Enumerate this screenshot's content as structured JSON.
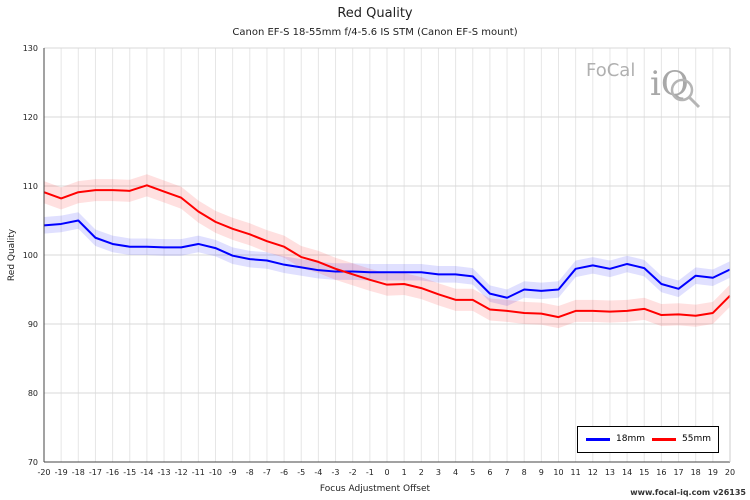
{
  "chart_data": {
    "type": "line",
    "title": "Red Quality",
    "subtitle": "Canon EF-S 18-55mm f/4-5.6 IS STM (Canon EF-S mount)",
    "xlabel": "Focus Adjustment Offset",
    "ylabel": "Red Quality",
    "xlim": [
      -20,
      20
    ],
    "ylim": [
      70,
      130
    ],
    "y_ticks": [
      70,
      80,
      90,
      100,
      110,
      120,
      130
    ],
    "x": [
      -20,
      -19,
      -18,
      -17,
      -16,
      -15,
      -14,
      -13,
      -12,
      -11,
      -10,
      -9,
      -8,
      -7,
      -6,
      -5,
      -4,
      -3,
      -2,
      -1,
      0,
      1,
      2,
      3,
      4,
      5,
      6,
      7,
      8,
      9,
      10,
      11,
      12,
      13,
      14,
      15,
      16,
      17,
      18,
      19,
      20
    ],
    "grid": true,
    "legend_position": "bottom-right",
    "series": [
      {
        "name": "18mm",
        "color": "#0000ff",
        "values": [
          104.3,
          104.5,
          105.0,
          102.5,
          101.6,
          101.2,
          101.2,
          101.1,
          101.1,
          101.6,
          101.0,
          99.9,
          99.4,
          99.2,
          98.6,
          98.2,
          97.8,
          97.6,
          97.6,
          97.5,
          97.5,
          97.5,
          97.5,
          97.2,
          97.2,
          96.9,
          94.4,
          93.8,
          95.0,
          94.8,
          95.0,
          98.0,
          98.5,
          98.0,
          98.7,
          98.1,
          95.8,
          95.1,
          97.0,
          96.7,
          97.9
        ],
        "band": 1.2
      },
      {
        "name": "55mm",
        "color": "#ff0000",
        "values": [
          109.1,
          108.2,
          109.1,
          109.4,
          109.4,
          109.3,
          110.1,
          109.2,
          108.3,
          106.3,
          104.8,
          103.8,
          103.0,
          102.0,
          101.2,
          99.7,
          99.0,
          98.0,
          97.2,
          96.4,
          95.7,
          95.8,
          95.2,
          94.3,
          93.5,
          93.5,
          92.1,
          91.9,
          91.6,
          91.5,
          91.0,
          91.9,
          91.9,
          91.8,
          91.9,
          92.2,
          91.3,
          91.4,
          91.2,
          91.6,
          94.1
        ],
        "band": 1.6
      }
    ]
  },
  "branding": {
    "logo_left": "FoCal",
    "logo_right": "iQ",
    "credit": "www.focal-iq.com  v26135"
  },
  "legend": {
    "items": [
      "18mm",
      "55mm"
    ]
  }
}
